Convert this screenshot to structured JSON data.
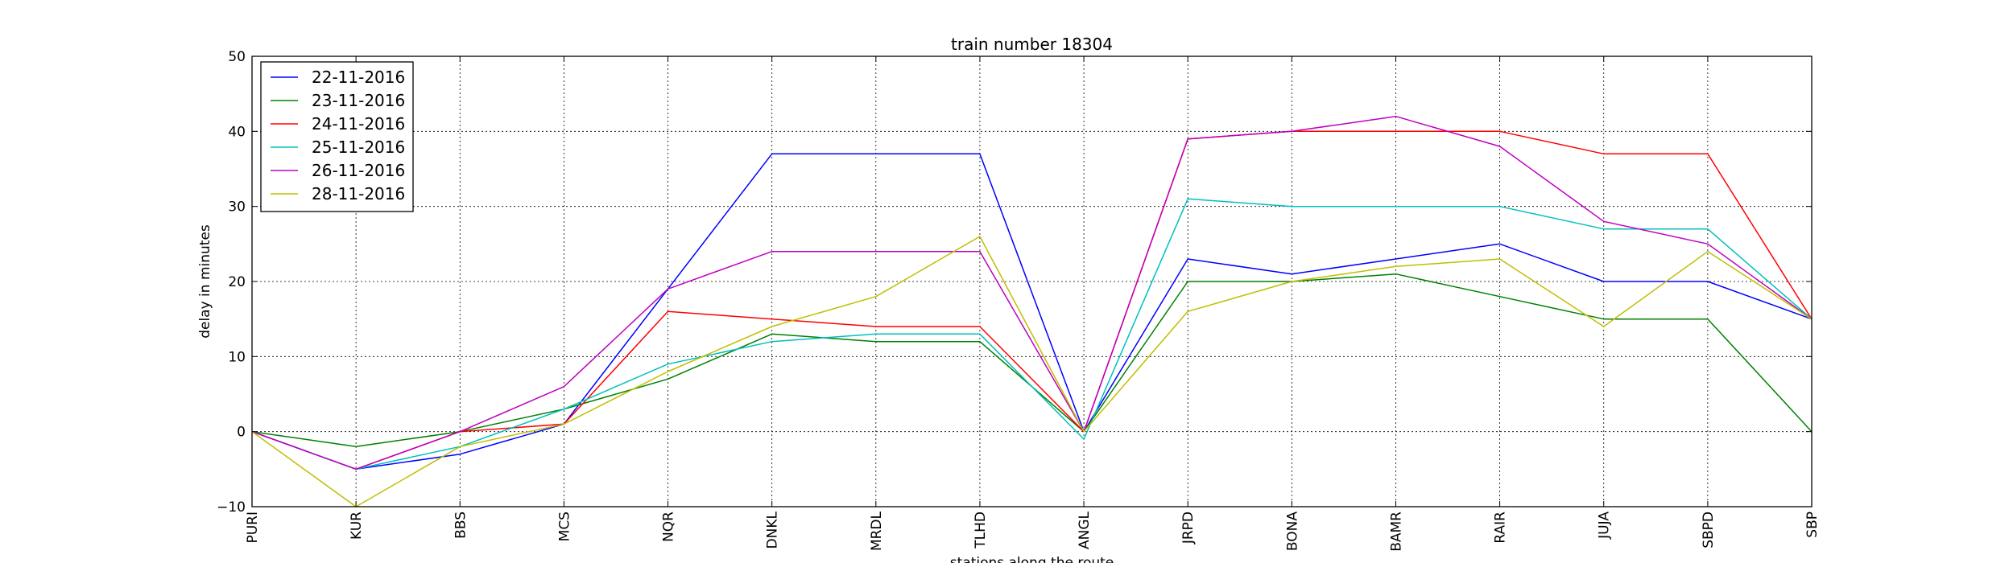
{
  "chart_data": {
    "type": "line",
    "title": "train number 18304",
    "xlabel": "stations along the route",
    "ylabel": "delay in minutes",
    "categories": [
      "PURI",
      "KUR",
      "BBS",
      "MCS",
      "NQR",
      "DNKL",
      "MRDL",
      "TLHD",
      "ANGL",
      "JRPD",
      "BONA",
      "BAMR",
      "RAIR",
      "JUJA",
      "SBPD",
      "SBP"
    ],
    "ylim": [
      -10,
      50
    ],
    "yticks": [
      "−10",
      "0",
      "10",
      "20",
      "30",
      "40",
      "50"
    ],
    "grid": true,
    "legend_position": "top-left",
    "series": [
      {
        "name": "22-11-2016",
        "color": "#0000ff",
        "values": [
          0,
          -5,
          -3,
          1,
          19,
          37,
          37,
          37,
          0,
          23,
          21,
          23,
          25,
          20,
          20,
          15
        ]
      },
      {
        "name": "23-11-2016",
        "color": "#008000",
        "values": [
          0,
          -2,
          0,
          3,
          7,
          13,
          12,
          12,
          0,
          20,
          20,
          21,
          18,
          15,
          15,
          0
        ]
      },
      {
        "name": "24-11-2016",
        "color": "#ff0000",
        "values": [
          0,
          -5,
          0,
          1,
          16,
          15,
          14,
          14,
          0,
          39,
          40,
          40,
          40,
          37,
          37,
          15
        ]
      },
      {
        "name": "25-11-2016",
        "color": "#00bfbf",
        "values": [
          0,
          -5,
          -2,
          3,
          9,
          12,
          13,
          13,
          -1,
          31,
          30,
          30,
          30,
          27,
          27,
          15
        ]
      },
      {
        "name": "26-11-2016",
        "color": "#bf00bf",
        "values": [
          0,
          -5,
          0,
          6,
          19,
          24,
          24,
          24,
          0,
          39,
          40,
          42,
          38,
          28,
          25,
          15
        ]
      },
      {
        "name": "28-11-2016",
        "color": "#bfbf00",
        "values": [
          0,
          -10,
          -2,
          1,
          8,
          14,
          18,
          26,
          0,
          16,
          20,
          22,
          23,
          14,
          24,
          15
        ]
      }
    ]
  }
}
